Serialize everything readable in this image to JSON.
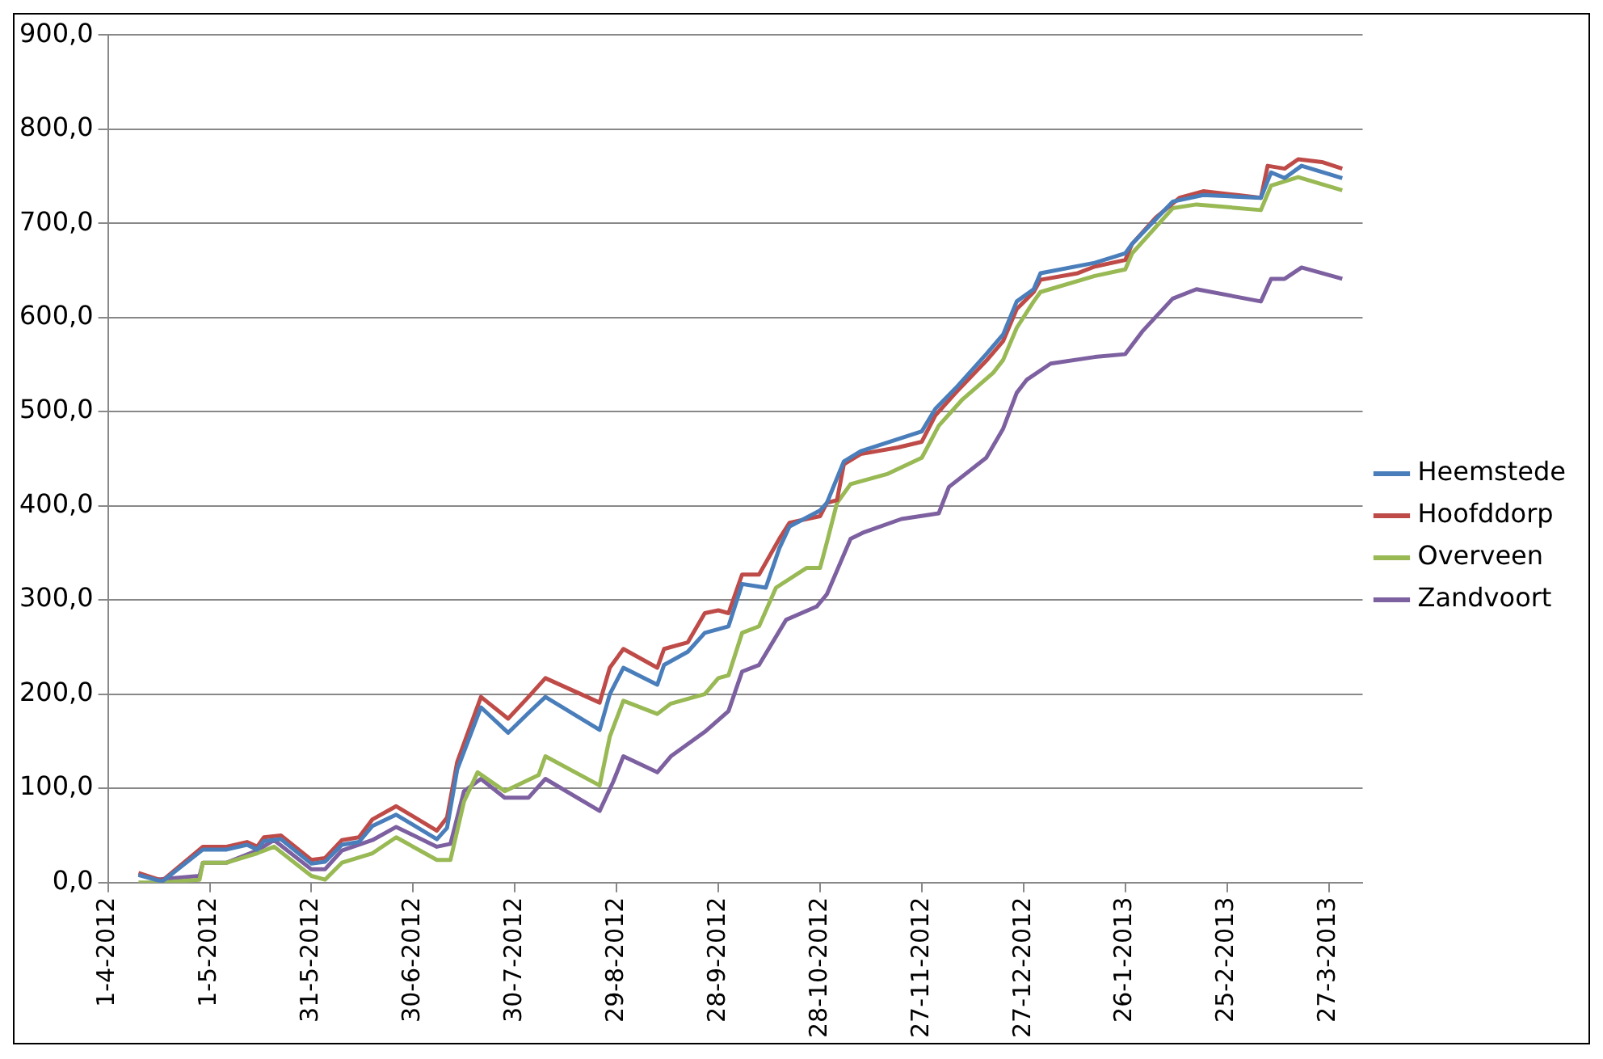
{
  "chart_data": {
    "type": "line",
    "grid": "y",
    "legend": "right",
    "marker": "none",
    "line_style": "solid",
    "xlim": [
      "2012-04-01",
      "2013-04-06"
    ],
    "xticks": [
      {
        "value": "2012-04-01",
        "label": "1-4-2012"
      },
      {
        "value": "2012-05-01",
        "label": "1-5-2012"
      },
      {
        "value": "2012-05-31",
        "label": "31-5-2012"
      },
      {
        "value": "2012-06-30",
        "label": "30-6-2012"
      },
      {
        "value": "2012-07-30",
        "label": "30-7-2012"
      },
      {
        "value": "2012-08-29",
        "label": "29-8-2012"
      },
      {
        "value": "2012-09-28",
        "label": "28-9-2012"
      },
      {
        "value": "2012-10-28",
        "label": "28-10-2012"
      },
      {
        "value": "2012-11-27",
        "label": "27-11-2012"
      },
      {
        "value": "2012-12-27",
        "label": "27-12-2012"
      },
      {
        "value": "2013-01-26",
        "label": "26-1-2013"
      },
      {
        "value": "2013-02-25",
        "label": "25-2-2013"
      },
      {
        "value": "2013-03-27",
        "label": "27-3-2013"
      }
    ],
    "ylim": [
      0,
      900
    ],
    "yticks": [
      {
        "value": 0,
        "label": "0,0"
      },
      {
        "value": 100,
        "label": "100,0"
      },
      {
        "value": 200,
        "label": "200,0"
      },
      {
        "value": 300,
        "label": "300,0"
      },
      {
        "value": 400,
        "label": "400,0"
      },
      {
        "value": 500,
        "label": "500,0"
      },
      {
        "value": 600,
        "label": "600,0"
      },
      {
        "value": 700,
        "label": "700,0"
      },
      {
        "value": 800,
        "label": "800,0"
      },
      {
        "value": 900,
        "label": "900,0"
      }
    ],
    "series": [
      {
        "name": "Heemstede",
        "color": "#4a7ebb",
        "x": [
          "2012-04-10",
          "2012-04-17",
          "2012-04-29",
          "2012-05-06",
          "2012-05-12",
          "2012-05-15",
          "2012-05-17",
          "2012-05-22",
          "2012-05-31",
          "2012-06-04",
          "2012-06-09",
          "2012-06-14",
          "2012-06-18",
          "2012-06-25",
          "2012-07-07",
          "2012-07-10",
          "2012-07-13",
          "2012-07-20",
          "2012-07-28",
          "2012-08-03",
          "2012-08-08",
          "2012-08-24",
          "2012-08-27",
          "2012-08-31",
          "2012-09-10",
          "2012-09-12",
          "2012-09-19",
          "2012-09-24",
          "2012-10-01",
          "2012-10-05",
          "2012-10-12",
          "2012-10-16",
          "2012-10-19",
          "2012-10-28",
          "2012-10-30",
          "2012-11-04",
          "2012-11-09",
          "2012-11-27",
          "2012-12-01",
          "2012-12-07",
          "2012-12-16",
          "2012-12-21",
          "2012-12-25",
          "2012-12-30",
          "2013-01-01",
          "2013-01-17",
          "2013-01-26",
          "2013-01-28",
          "2013-02-09",
          "2013-02-18",
          "2013-03-07",
          "2013-03-10",
          "2013-03-14",
          "2013-03-19",
          "2013-03-31"
        ],
        "values": [
          8,
          1,
          35,
          35,
          40,
          35,
          44,
          46,
          20,
          22,
          40,
          43,
          60,
          72,
          46,
          58,
          120,
          186,
          159,
          180,
          197,
          162,
          200,
          228,
          210,
          231,
          245,
          265,
          272,
          317,
          313,
          355,
          378,
          395,
          403,
          447,
          458,
          479,
          503,
          525,
          561,
          582,
          617,
          630,
          647,
          658,
          668,
          678,
          723,
          730,
          727,
          754,
          748,
          761,
          748
        ]
      },
      {
        "name": "Hoofddorp",
        "color": "#be4b48",
        "x": [
          "2012-04-10",
          "2012-04-17",
          "2012-04-29",
          "2012-05-06",
          "2012-05-12",
          "2012-05-15",
          "2012-05-17",
          "2012-05-22",
          "2012-05-31",
          "2012-06-04",
          "2012-06-09",
          "2012-06-14",
          "2012-06-18",
          "2012-06-25",
          "2012-07-07",
          "2012-07-10",
          "2012-07-13",
          "2012-07-20",
          "2012-07-28",
          "2012-08-03",
          "2012-08-08",
          "2012-08-24",
          "2012-08-27",
          "2012-08-31",
          "2012-09-10",
          "2012-09-12",
          "2012-09-19",
          "2012-09-24",
          "2012-09-28",
          "2012-10-01",
          "2012-10-05",
          "2012-10-10",
          "2012-10-16",
          "2012-10-19",
          "2012-10-28",
          "2012-10-30",
          "2012-11-02",
          "2012-11-04",
          "2012-11-09",
          "2012-11-20",
          "2012-11-27",
          "2012-12-01",
          "2012-12-07",
          "2012-12-16",
          "2012-12-21",
          "2012-12-25",
          "2012-12-30",
          "2013-01-01",
          "2013-01-12",
          "2013-01-17",
          "2013-01-26",
          "2013-01-28",
          "2013-02-04",
          "2013-02-11",
          "2013-02-18",
          "2013-02-28",
          "2013-03-07",
          "2013-03-09",
          "2013-03-14",
          "2013-03-18",
          "2013-03-25",
          "2013-03-31"
        ],
        "values": [
          10,
          2,
          38,
          38,
          43,
          38,
          48,
          50,
          24,
          26,
          45,
          48,
          67,
          81,
          55,
          69,
          128,
          197,
          174,
          197,
          217,
          191,
          228,
          248,
          228,
          248,
          255,
          286,
          289,
          286,
          327,
          327,
          365,
          382,
          389,
          403,
          406,
          444,
          455,
          462,
          468,
          496,
          520,
          554,
          575,
          609,
          627,
          640,
          647,
          654,
          661,
          678,
          706,
          727,
          734,
          730,
          727,
          761,
          758,
          768,
          765,
          758
        ]
      },
      {
        "name": "Overveen",
        "color": "#98b954",
        "x": [
          "2012-04-10",
          "2012-04-17",
          "2012-04-28",
          "2012-04-29",
          "2012-05-06",
          "2012-05-15",
          "2012-05-20",
          "2012-05-31",
          "2012-06-04",
          "2012-06-09",
          "2012-06-18",
          "2012-06-25",
          "2012-07-07",
          "2012-07-11",
          "2012-07-15",
          "2012-07-19",
          "2012-07-27",
          "2012-08-06",
          "2012-08-08",
          "2012-08-24",
          "2012-08-27",
          "2012-08-31",
          "2012-09-10",
          "2012-09-14",
          "2012-09-24",
          "2012-09-28",
          "2012-10-01",
          "2012-10-05",
          "2012-10-10",
          "2012-10-15",
          "2012-10-24",
          "2012-10-28",
          "2012-10-30",
          "2012-11-02",
          "2012-11-06",
          "2012-11-17",
          "2012-11-27",
          "2012-12-02",
          "2012-12-09",
          "2012-12-18",
          "2012-12-21",
          "2012-12-25",
          "2012-12-30",
          "2013-01-01",
          "2013-01-17",
          "2013-01-26",
          "2013-01-28",
          "2013-02-09",
          "2013-02-16",
          "2013-03-07",
          "2013-03-10",
          "2013-03-18",
          "2013-03-31"
        ],
        "values": [
          0,
          0,
          3,
          21,
          21,
          31,
          38,
          7,
          3,
          21,
          31,
          48,
          24,
          24,
          86,
          117,
          97,
          114,
          134,
          103,
          155,
          193,
          179,
          190,
          200,
          217,
          220,
          265,
          272,
          313,
          334,
          334,
          361,
          403,
          423,
          434,
          451,
          485,
          513,
          541,
          555,
          589,
          617,
          627,
          644,
          651,
          668,
          716,
          720,
          714,
          740,
          749,
          735
        ]
      },
      {
        "name": "Zandvoort",
        "color": "#7d60a0",
        "x": [
          "2012-04-15",
          "2012-04-28",
          "2012-04-29",
          "2012-05-06",
          "2012-05-15",
          "2012-05-20",
          "2012-05-31",
          "2012-06-04",
          "2012-06-09",
          "2012-06-18",
          "2012-06-25",
          "2012-07-07",
          "2012-07-11",
          "2012-07-15",
          "2012-07-20",
          "2012-07-27",
          "2012-08-03",
          "2012-08-08",
          "2012-08-24",
          "2012-08-28",
          "2012-08-31",
          "2012-09-10",
          "2012-09-14",
          "2012-09-24",
          "2012-10-01",
          "2012-10-05",
          "2012-10-10",
          "2012-10-18",
          "2012-10-27",
          "2012-10-30",
          "2012-11-06",
          "2012-11-10",
          "2012-11-21",
          "2012-12-02",
          "2012-12-05",
          "2012-12-16",
          "2012-12-21",
          "2012-12-25",
          "2012-12-28",
          "2013-01-04",
          "2013-01-17",
          "2013-01-26",
          "2013-01-31",
          "2013-02-09",
          "2013-02-16",
          "2013-03-07",
          "2013-03-10",
          "2013-03-14",
          "2013-03-19",
          "2013-03-31"
        ],
        "values": [
          3,
          7,
          21,
          21,
          34,
          45,
          14,
          14,
          34,
          45,
          59,
          38,
          41,
          97,
          110,
          90,
          90,
          110,
          76,
          107,
          134,
          117,
          134,
          160,
          182,
          224,
          231,
          279,
          293,
          306,
          365,
          372,
          386,
          392,
          420,
          451,
          482,
          520,
          534,
          551,
          558,
          561,
          585,
          620,
          630,
          617,
          641,
          641,
          653,
          641
        ]
      }
    ]
  }
}
